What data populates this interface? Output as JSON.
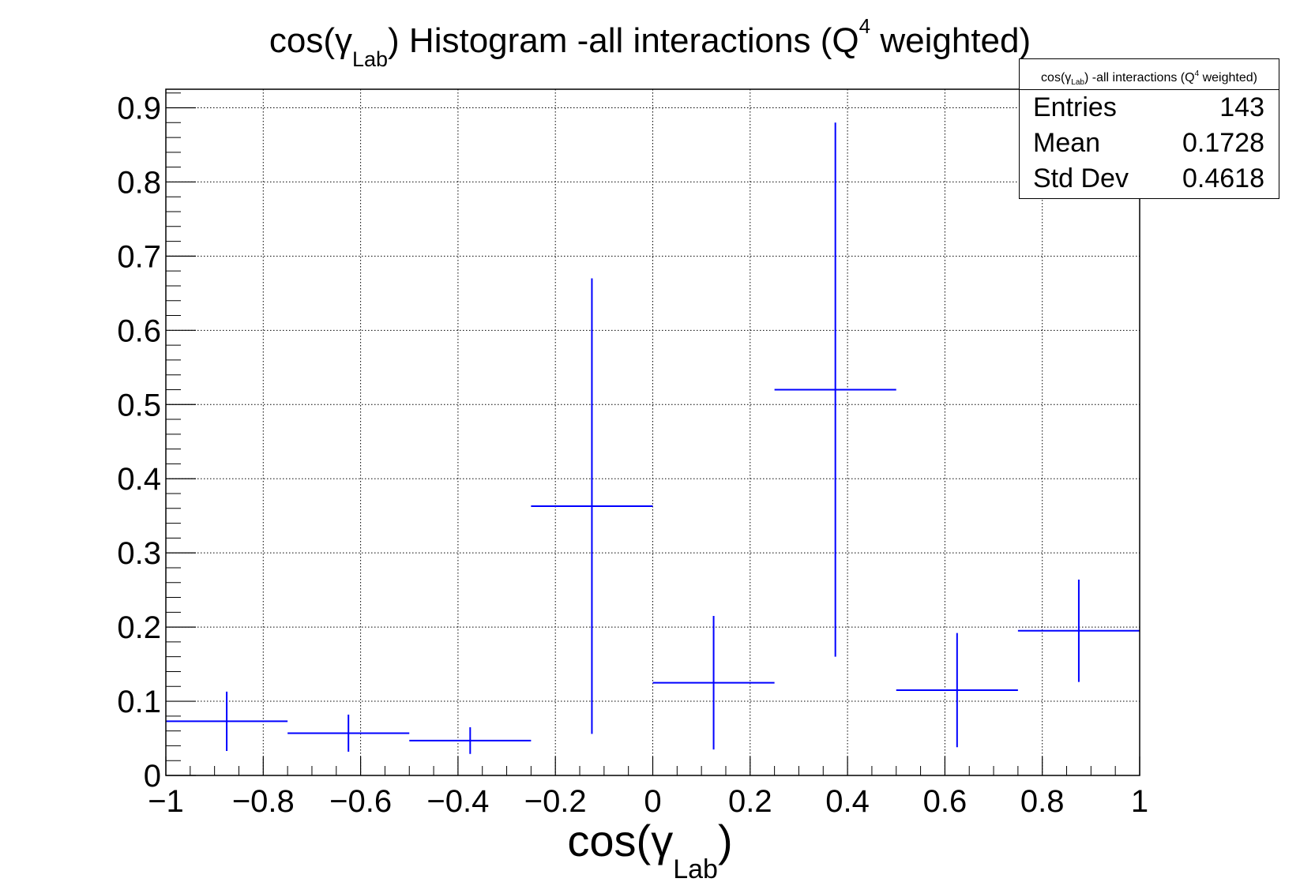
{
  "title": {
    "pre": "cos(γ",
    "sub": "Lab",
    "mid": ") Histogram -all interactions (Q",
    "sup": "4",
    "post": " weighted)"
  },
  "stats_box": {
    "header": {
      "pre": "cos(γ",
      "sub": "Lab",
      "mid": ") -all interactions (Q",
      "sup": "4",
      "post": " weighted)"
    },
    "rows": [
      {
        "label": "Entries",
        "value": "143"
      },
      {
        "label": "Mean",
        "value": "0.1728"
      },
      {
        "label": "Std Dev",
        "value": "0.4618"
      }
    ]
  },
  "x_title": {
    "pre": "cos(γ",
    "sub": "Lab",
    "post": ")"
  },
  "colors": {
    "series": "#0000ff",
    "axis": "#000000",
    "grid": "#000000"
  },
  "chart_data": {
    "type": "histogram-errorbars",
    "xlim": [
      -1,
      1
    ],
    "ylim": [
      0,
      0.925
    ],
    "grid": true,
    "x_ticks": [
      -1,
      -0.8,
      -0.6,
      -0.4,
      -0.2,
      0,
      0.2,
      0.4,
      0.6,
      0.8,
      1
    ],
    "x_tick_labels": [
      "−1",
      "−0.8",
      "−0.6",
      "−0.4",
      "−0.2",
      "0",
      "0.2",
      "0.4",
      "0.6",
      "0.8",
      "1"
    ],
    "y_ticks": [
      0,
      0.1,
      0.2,
      0.3,
      0.4,
      0.5,
      0.6,
      0.7,
      0.8,
      0.9
    ],
    "y_tick_labels": [
      "0",
      "0.1",
      "0.2",
      "0.3",
      "0.4",
      "0.5",
      "0.6",
      "0.7",
      "0.8",
      "0.9"
    ],
    "bins": [
      {
        "xlow": -1.0,
        "xhigh": -0.75,
        "value": 0.073,
        "error": 0.04
      },
      {
        "xlow": -0.75,
        "xhigh": -0.5,
        "value": 0.057,
        "error": 0.025
      },
      {
        "xlow": -0.5,
        "xhigh": -0.25,
        "value": 0.047,
        "error": 0.018
      },
      {
        "xlow": -0.25,
        "xhigh": 0.0,
        "value": 0.363,
        "error": 0.307
      },
      {
        "xlow": 0.0,
        "xhigh": 0.25,
        "value": 0.125,
        "error": 0.09
      },
      {
        "xlow": 0.25,
        "xhigh": 0.5,
        "value": 0.52,
        "error": 0.36
      },
      {
        "xlow": 0.5,
        "xhigh": 0.75,
        "value": 0.115,
        "error": 0.077
      },
      {
        "xlow": 0.75,
        "xhigh": 1.0,
        "value": 0.195,
        "error": 0.069
      }
    ]
  }
}
